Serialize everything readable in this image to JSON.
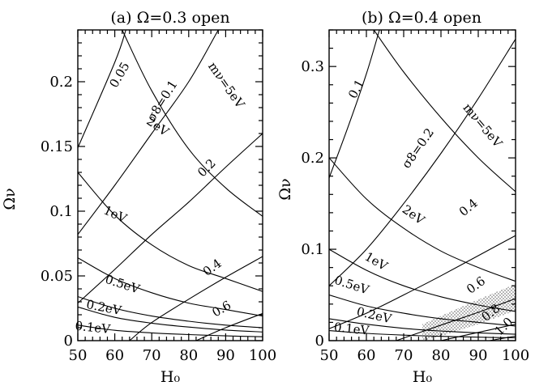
{
  "chart_data": [
    {
      "type": "line",
      "title": "(a) Ω=0.3 open",
      "xlabel": "H₀",
      "ylabel": "Ων",
      "xlim": [
        50,
        100
      ],
      "ylim": [
        0,
        0.24
      ],
      "x_ticks": [
        "50",
        "60",
        "70",
        "80",
        "90",
        "100"
      ],
      "y_ticks": [
        "0",
        "0.05",
        "0.1",
        "0.15",
        "0.2"
      ],
      "series": [
        {
          "name": "0.05",
          "family": "sigma8",
          "points": [
            [
              50,
              0.149
            ],
            [
              60,
              0.215
            ],
            [
              63,
              0.24
            ]
          ]
        },
        {
          "name": "σ8=0.1",
          "family": "sigma8",
          "points": [
            [
              50,
              0.082
            ],
            [
              60,
              0.12
            ],
            [
              70,
              0.16
            ],
            [
              80,
              0.2
            ],
            [
              88,
              0.24
            ]
          ]
        },
        {
          "name": "0.2",
          "family": "sigma8",
          "points": [
            [
              50,
              0.029
            ],
            [
              60,
              0.055
            ],
            [
              70,
              0.082
            ],
            [
              80,
              0.107
            ],
            [
              90,
              0.134
            ],
            [
              100,
              0.16
            ]
          ]
        },
        {
          "name": "0.4",
          "family": "sigma8",
          "points": [
            [
              64,
              0
            ],
            [
              70,
              0.014
            ],
            [
              80,
              0.032
            ],
            [
              90,
              0.049
            ],
            [
              100,
              0.065
            ]
          ]
        },
        {
          "name": "0.6",
          "family": "sigma8",
          "points": [
            [
              82,
              0
            ],
            [
              90,
              0.01
            ],
            [
              100,
              0.021
            ]
          ]
        },
        {
          "name": "mν=5eV",
          "family": "mass",
          "points": [
            [
              62,
              0.24
            ],
            [
              70,
              0.193
            ],
            [
              80,
              0.148
            ],
            [
              90,
              0.118
            ],
            [
              100,
              0.096
            ]
          ]
        },
        {
          "name": "2eV",
          "family": "mass",
          "points": [
            [
              50,
              0.13
            ],
            [
              60,
              0.097
            ],
            [
              70,
              0.074
            ],
            [
              80,
              0.058
            ],
            [
              90,
              0.048
            ],
            [
              100,
              0.038
            ]
          ]
        },
        {
          "name": "1eV",
          "family": "mass",
          "points": [
            [
              50,
              0.064
            ],
            [
              60,
              0.048
            ],
            [
              70,
              0.037
            ],
            [
              80,
              0.029
            ],
            [
              90,
              0.024
            ],
            [
              100,
              0.019
            ]
          ]
        },
        {
          "name": "0.5eV",
          "family": "mass",
          "points": [
            [
              50,
              0.034
            ],
            [
              60,
              0.025
            ],
            [
              70,
              0.019
            ],
            [
              80,
              0.015
            ],
            [
              90,
              0.012
            ],
            [
              100,
              0.01
            ]
          ]
        },
        {
          "name": "0.2eV",
          "family": "mass",
          "points": [
            [
              50,
              0.026
            ],
            [
              60,
              0.018
            ],
            [
              70,
              0.0135
            ],
            [
              80,
              0.0105
            ],
            [
              90,
              0.0082
            ],
            [
              100,
              0.0067
            ]
          ]
        },
        {
          "name": "0.1eV",
          "family": "mass",
          "points": [
            [
              50,
              0.012
            ],
            [
              60,
              0.008
            ],
            [
              70,
              0.006
            ],
            [
              80,
              0.0047
            ],
            [
              90,
              0.0037
            ],
            [
              100,
              0.003
            ]
          ]
        }
      ],
      "labels": [
        {
          "text": "0.05",
          "x": 61.5,
          "y": 0.205,
          "rotate": -60
        },
        {
          "text": "σ8=0.1",
          "x": 73,
          "y": 0.185,
          "rotate": -58
        },
        {
          "text": "mν=5eV",
          "x": 90,
          "y": 0.197,
          "rotate": 55
        },
        {
          "text": "2eV",
          "x": 71.5,
          "y": 0.165,
          "rotate": 35
        },
        {
          "text": "0.2",
          "x": 85,
          "y": 0.133,
          "rotate": -45
        },
        {
          "text": "1eV",
          "x": 60,
          "y": 0.097,
          "rotate": 25
        },
        {
          "text": "0.4",
          "x": 86.5,
          "y": 0.056,
          "rotate": -36
        },
        {
          "text": "0.5eV",
          "x": 62,
          "y": 0.043,
          "rotate": 18
        },
        {
          "text": "0.6",
          "x": 89,
          "y": 0.024,
          "rotate": -30
        },
        {
          "text": "0.2eV",
          "x": 57,
          "y": 0.025,
          "rotate": 11
        },
        {
          "text": "0.1eV",
          "x": 54,
          "y": 0.0095,
          "rotate": 6
        }
      ]
    },
    {
      "type": "line",
      "title": "(b) Ω=0.4 open",
      "xlabel": "H₀",
      "ylabel": "Ων",
      "xlim": [
        50,
        100
      ],
      "ylim": [
        0,
        0.34
      ],
      "x_ticks": [
        "50",
        "60",
        "70",
        "80",
        "90",
        "100"
      ],
      "y_ticks": [
        "0",
        "0.1",
        "0.2",
        "0.3"
      ],
      "shaded_band": {
        "x": [
          75,
          80,
          90,
          100,
          100,
          90,
          80,
          75
        ],
        "y": [
          0,
          0.005,
          0.018,
          0.033,
          0.062,
          0.045,
          0.027,
          0.018
        ]
      },
      "series": [
        {
          "name": "0.1",
          "family": "sigma8",
          "points": [
            [
              50,
              0.178
            ],
            [
              55,
              0.233
            ],
            [
              60,
              0.292
            ],
            [
              63.5,
              0.34
            ]
          ]
        },
        {
          "name": "σ8=0.2",
          "family": "sigma8",
          "points": [
            [
              50,
              0.06
            ],
            [
              60,
              0.1
            ],
            [
              70,
              0.15
            ],
            [
              80,
              0.205
            ],
            [
              90,
              0.265
            ],
            [
              100,
              0.33
            ]
          ]
        },
        {
          "name": "0.4",
          "family": "sigma8",
          "points": [
            [
              50,
              0.013
            ],
            [
              60,
              0.03
            ],
            [
              70,
              0.05
            ],
            [
              80,
              0.071
            ],
            [
              90,
              0.093
            ],
            [
              100,
              0.115
            ]
          ]
        },
        {
          "name": "0.6",
          "family": "sigma8",
          "points": [
            [
              68,
              0
            ],
            [
              80,
              0.017
            ],
            [
              90,
              0.031
            ],
            [
              100,
              0.046
            ]
          ]
        },
        {
          "name": "0.8",
          "family": "sigma8",
          "points": [
            [
              80,
              0
            ],
            [
              90,
              0.009
            ],
            [
              100,
              0.018
            ]
          ]
        },
        {
          "name": "1.0",
          "family": "sigma8",
          "points": [
            [
              93,
              0
            ],
            [
              100,
              0.005
            ]
          ]
        },
        {
          "name": "mν=5eV",
          "family": "mass",
          "points": [
            [
              62,
              0.34
            ],
            [
              70,
              0.294
            ],
            [
              80,
              0.244
            ],
            [
              90,
              0.2
            ],
            [
              100,
              0.163
            ]
          ]
        },
        {
          "name": "2eV",
          "family": "mass",
          "points": [
            [
              50,
              0.2
            ],
            [
              60,
              0.155
            ],
            [
              70,
              0.123
            ],
            [
              80,
              0.098
            ],
            [
              90,
              0.08
            ],
            [
              100,
              0.065
            ]
          ]
        },
        {
          "name": "1eV",
          "family": "mass",
          "points": [
            [
              50,
              0.1
            ],
            [
              60,
              0.077
            ],
            [
              70,
              0.06
            ],
            [
              80,
              0.048
            ],
            [
              90,
              0.039
            ],
            [
              100,
              0.032
            ]
          ]
        },
        {
          "name": "0.5eV",
          "family": "mass",
          "points": [
            [
              50,
              0.05
            ],
            [
              60,
              0.038
            ],
            [
              70,
              0.03
            ],
            [
              80,
              0.024
            ],
            [
              90,
              0.02
            ],
            [
              100,
              0.016
            ]
          ]
        },
        {
          "name": "0.2eV",
          "family": "mass",
          "points": [
            [
              50,
              0.024
            ],
            [
              60,
              0.018
            ],
            [
              70,
              0.0135
            ],
            [
              80,
              0.0105
            ],
            [
              90,
              0.0085
            ],
            [
              100,
              0.007
            ]
          ]
        },
        {
          "name": "0.1eV",
          "family": "mass",
          "points": [
            [
              50,
              0.011
            ],
            [
              60,
              0.008
            ],
            [
              70,
              0.006
            ],
            [
              80,
              0.0047
            ],
            [
              90,
              0.0038
            ],
            [
              100,
              0.0031
            ]
          ]
        }
      ],
      "labels": [
        {
          "text": "0.1",
          "x": 57.5,
          "y": 0.275,
          "rotate": -62
        },
        {
          "text": "σ8=0.2",
          "x": 74,
          "y": 0.21,
          "rotate": -55
        },
        {
          "text": "mν=5eV",
          "x": 91,
          "y": 0.235,
          "rotate": 50
        },
        {
          "text": "2eV",
          "x": 72.5,
          "y": 0.137,
          "rotate": 35
        },
        {
          "text": "0.4",
          "x": 87.5,
          "y": 0.145,
          "rotate": -40
        },
        {
          "text": "1eV",
          "x": 62.5,
          "y": 0.086,
          "rotate": 30
        },
        {
          "text": "0.5eV",
          "x": 56,
          "y": 0.06,
          "rotate": 18
        },
        {
          "text": "0.6",
          "x": 89.5,
          "y": 0.06,
          "rotate": -36
        },
        {
          "text": "0.8",
          "x": 93.5,
          "y": 0.03,
          "rotate": -38
        },
        {
          "text": "0.2eV",
          "x": 62,
          "y": 0.027,
          "rotate": 13
        },
        {
          "text": "1.0",
          "x": 97,
          "y": 0.015,
          "rotate": -45
        },
        {
          "text": "0.1eV",
          "x": 56,
          "y": 0.012,
          "rotate": 6
        }
      ]
    }
  ]
}
